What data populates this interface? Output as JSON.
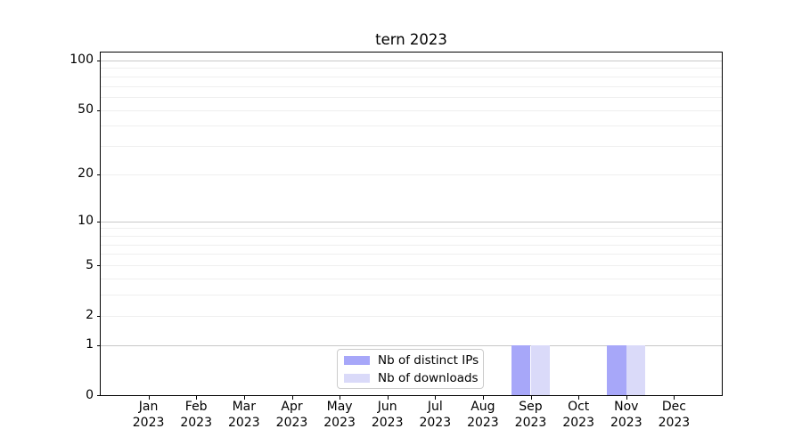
{
  "chart_data": {
    "type": "bar",
    "title": "tern 2023",
    "categories": [
      {
        "month": "Jan",
        "year": "2023"
      },
      {
        "month": "Feb",
        "year": "2023"
      },
      {
        "month": "Mar",
        "year": "2023"
      },
      {
        "month": "Apr",
        "year": "2023"
      },
      {
        "month": "May",
        "year": "2023"
      },
      {
        "month": "Jun",
        "year": "2023"
      },
      {
        "month": "Jul",
        "year": "2023"
      },
      {
        "month": "Aug",
        "year": "2023"
      },
      {
        "month": "Sep",
        "year": "2023"
      },
      {
        "month": "Oct",
        "year": "2023"
      },
      {
        "month": "Nov",
        "year": "2023"
      },
      {
        "month": "Dec",
        "year": "2023"
      }
    ],
    "series": [
      {
        "name": "Nb of distinct IPs",
        "color": "#a7a7f9",
        "values": [
          0,
          0,
          0,
          0,
          0,
          0,
          0,
          0,
          1,
          0,
          1,
          0
        ]
      },
      {
        "name": "Nb of downloads",
        "color": "#dadaf9",
        "values": [
          0,
          0,
          0,
          0,
          0,
          0,
          0,
          0,
          1,
          0,
          1,
          0
        ]
      }
    ],
    "y_axis": {
      "scale": "log1p",
      "tick_values": [
        0,
        1,
        2,
        5,
        10,
        20,
        50,
        100
      ],
      "tick_labels": [
        "0",
        "1",
        "2",
        "5",
        "10",
        "20",
        "50",
        "100"
      ],
      "major_gridlines": [
        1,
        10,
        100
      ],
      "minor_gridlines": [
        2,
        3,
        4,
        5,
        6,
        7,
        8,
        9,
        20,
        30,
        40,
        50,
        60,
        70,
        80,
        90
      ],
      "range": [
        0,
        112
      ]
    },
    "legend": {
      "position": "lower-center"
    },
    "grid": true,
    "colors": {
      "major_gridline": "#c8c8c8",
      "minor_gridline": "#efefef",
      "spine": "#000000",
      "background": "#ffffff"
    }
  }
}
